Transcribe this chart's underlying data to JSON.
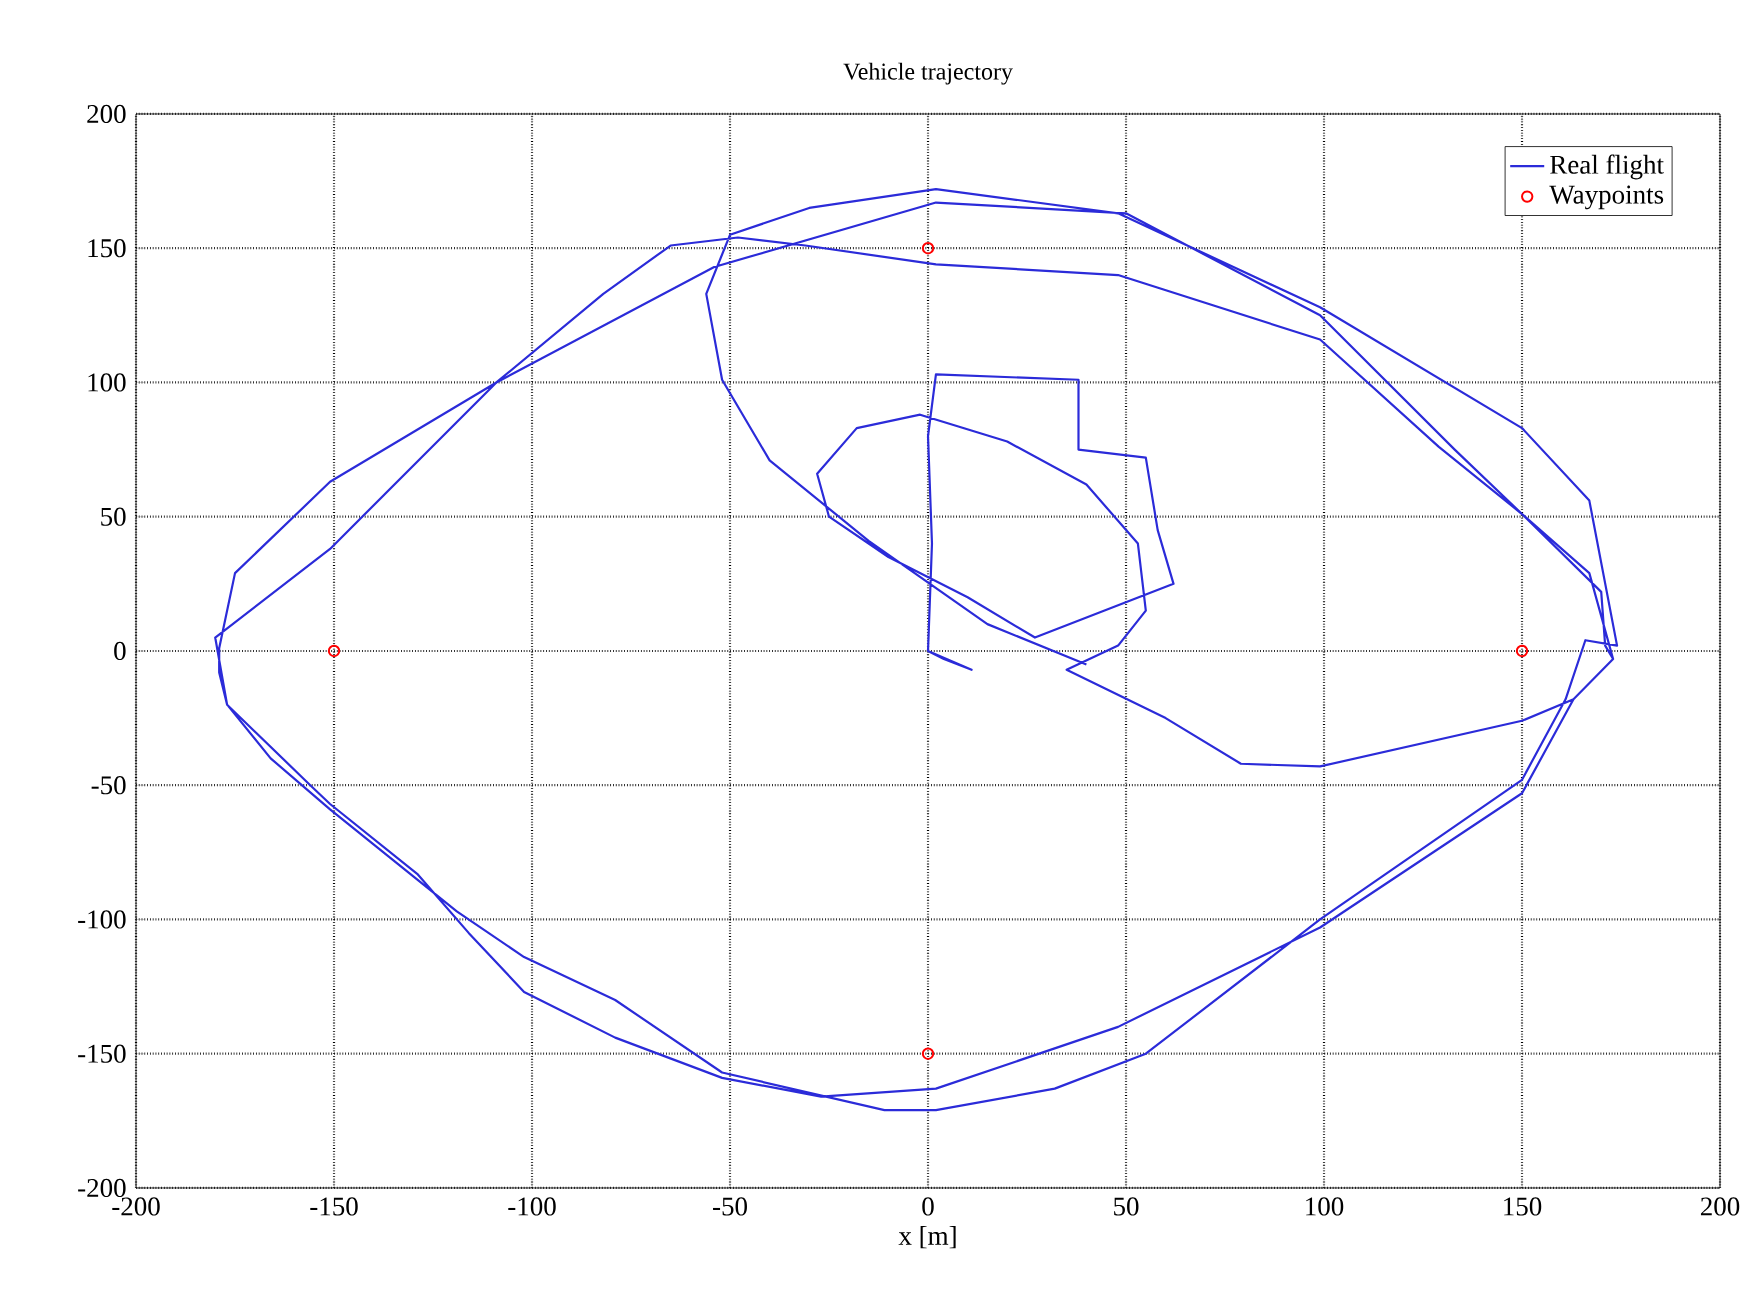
{
  "chart_data": {
    "type": "line",
    "title": "Vehicle trajectory",
    "xlabel": "x [m]",
    "xlim": [
      -200,
      200
    ],
    "ylim": [
      -200,
      200
    ],
    "xticks": [
      -200,
      -150,
      -100,
      -50,
      0,
      50,
      100,
      150,
      200
    ],
    "yticks": [
      -200,
      -150,
      -100,
      -50,
      0,
      50,
      100,
      150,
      200
    ],
    "grid": true,
    "legend": "top right",
    "series": [
      {
        "name": "Real flight",
        "color": "#2b2bd9",
        "marker": "none",
        "line_style": "solid",
        "x": [
          0,
          11,
          4,
          0,
          1,
          0,
          2,
          38,
          38,
          55,
          58,
          62,
          27,
          10,
          -10,
          -25,
          -28,
          -18,
          -2,
          20,
          40,
          53,
          55,
          48,
          35,
          60,
          79,
          99,
          150,
          163,
          173,
          167,
          150,
          129,
          99,
          48,
          2,
          -31,
          -48,
          -65,
          -82,
          -109,
          -151,
          -175,
          -179,
          -179,
          -177,
          -156,
          -151,
          -129,
          -116,
          -102,
          -79,
          -52,
          -27,
          2,
          48,
          99,
          150,
          163,
          173,
          171,
          170,
          150,
          133,
          99,
          50,
          2,
          -54,
          -109,
          -151,
          -180,
          -177,
          -166,
          -151,
          -119,
          -102,
          -79,
          -52,
          -11,
          2,
          32,
          55,
          99,
          150,
          161,
          166,
          174,
          167,
          150,
          99,
          48,
          2,
          -30,
          -50,
          -56,
          -52,
          -40,
          -15,
          15,
          40
        ],
        "values": [
          0,
          -7,
          -3,
          0,
          40,
          80,
          103,
          101,
          75,
          72,
          45,
          25,
          5,
          20,
          35,
          50,
          66,
          83,
          88,
          78,
          62,
          40,
          15,
          2,
          -7,
          -25,
          -42,
          -43,
          -26,
          -18,
          -3,
          29,
          51,
          76,
          116,
          140,
          144,
          151,
          154,
          151,
          133,
          100,
          63,
          29,
          1,
          -8,
          -20,
          -50,
          -57,
          -83,
          -105,
          -127,
          -144,
          -159,
          -166,
          -163,
          -140,
          -103,
          -53,
          -18,
          -3,
          2,
          22,
          51,
          75,
          125,
          163,
          167,
          143,
          100,
          38,
          5,
          -20,
          -40,
          -59,
          -97,
          -114,
          -130,
          -157,
          -171,
          -171,
          -163,
          -150,
          -100,
          -48,
          -18,
          4,
          2,
          56,
          83,
          128,
          163,
          172,
          165,
          155,
          133,
          101,
          71,
          41,
          10,
          -5
        ]
      },
      {
        "name": "Waypoints",
        "type": "scatter",
        "color": "#ff0000",
        "marker": "circle",
        "x": [
          0,
          150,
          0,
          -150
        ],
        "values": [
          150,
          0,
          -150,
          0
        ]
      }
    ]
  }
}
